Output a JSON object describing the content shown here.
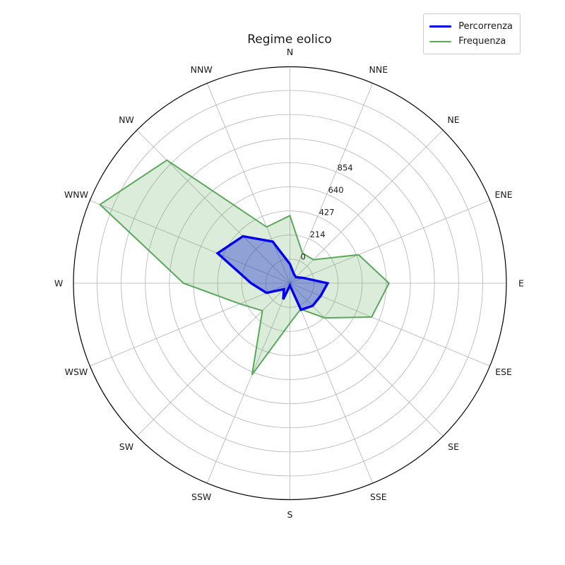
{
  "title": "Regime eolico",
  "legend": {
    "position": "upper right",
    "items": [
      {
        "label": "Percorrenza",
        "color": "#0000ee",
        "line_width": 3.5
      },
      {
        "label": "Frequenza",
        "color": "#5aa85a",
        "line_width": 2
      }
    ]
  },
  "chart_data": {
    "type": "radar",
    "projection": "polar",
    "title": "Regime eolico",
    "grid": true,
    "legend_position": "upper right",
    "categories": [
      "N",
      "NNE",
      "NE",
      "ENE",
      "E",
      "ESE",
      "SE",
      "SSE",
      "S",
      "SSW",
      "SW",
      "WSW",
      "W",
      "WNW",
      "NW",
      "NNW"
    ],
    "series": [
      {
        "name": "Frequenza",
        "color": "#5aa85a",
        "fill": "rgba(90,168,90,0.22)",
        "line_width": 2,
        "values": [
          600,
          290,
          295,
          660,
          880,
          785,
          435,
          250,
          355,
          880,
          345,
          480,
          945,
          1825,
          1545,
          540
        ]
      },
      {
        "name": "Percorrenza",
        "color": "#0000ee",
        "fill": "rgba(30,50,205,0.40)",
        "line_width": 3.4,
        "values": [
          170,
          90,
          75,
          125,
          335,
          295,
          285,
          255,
          20,
          155,
          75,
          225,
          345,
          695,
          590,
          400
        ]
      }
    ],
    "r_axis": {
      "min": 0,
      "max": 1922,
      "grid_step": 214,
      "tick_values": [
        0,
        214,
        427,
        640,
        854
      ],
      "tick_labels": [
        "0",
        "214",
        "427",
        "640",
        "854"
      ],
      "tick_label_angle_deg": 22.5
    },
    "theta_axis": {
      "zero_location": "N",
      "direction": "clockwise",
      "step_deg": 22.5
    },
    "style": {
      "grid_color": "#b3b3b3",
      "outer_circle_color": "#000000",
      "tick_label_color": "#1a1a1a",
      "direction_label_color": "#1a1a1a"
    }
  }
}
